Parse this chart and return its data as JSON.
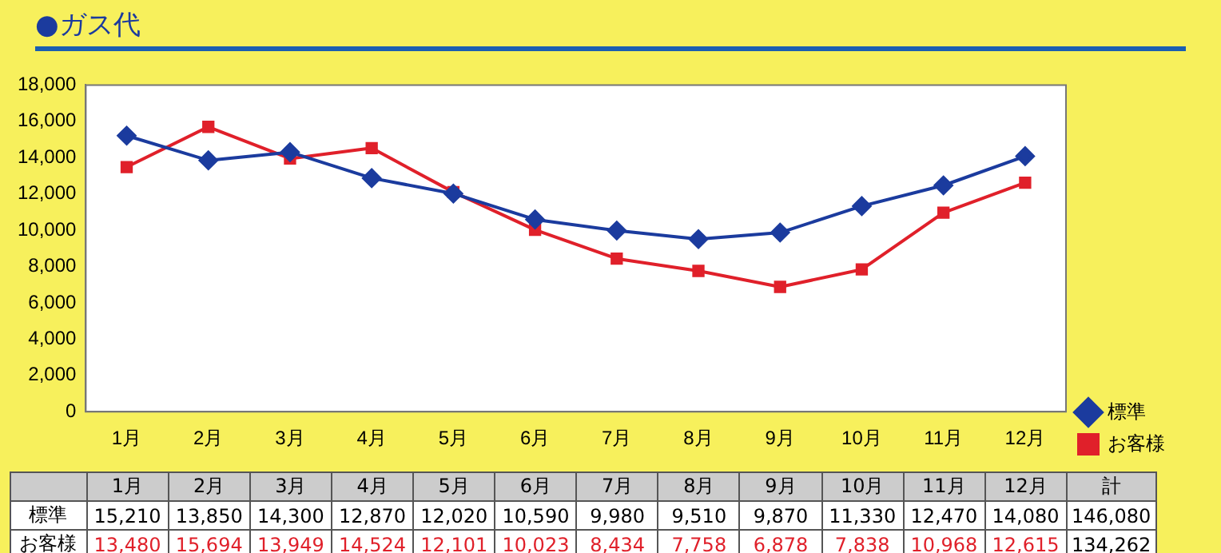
{
  "chart_data": {
    "type": "line",
    "title": "●ガス代",
    "categories": [
      "1月",
      "2月",
      "3月",
      "4月",
      "5月",
      "6月",
      "7月",
      "8月",
      "9月",
      "10月",
      "11月",
      "12月"
    ],
    "series": [
      {
        "name": "標準",
        "color": "#1b3b9e",
        "marker": "diamond",
        "values": [
          15210,
          13850,
          14300,
          12870,
          12020,
          10590,
          9980,
          9510,
          9870,
          11330,
          12470,
          14080
        ],
        "value_labels": [
          "15,210",
          "13,850",
          "14,300",
          "12,870",
          "12,020",
          "10,590",
          "9,980",
          "9,510",
          "9,870",
          "11,330",
          "12,470",
          "14,080"
        ]
      },
      {
        "name": "お客様",
        "color": "#e0202a",
        "marker": "square",
        "values": [
          13480,
          15694,
          13949,
          14524,
          12101,
          10023,
          8434,
          7758,
          6878,
          7838,
          10968,
          12615
        ],
        "value_labels": [
          "13,480",
          "15,694",
          "13,949",
          "14,524",
          "12,101",
          "10,023",
          "8,434",
          "7,758",
          "6,878",
          "7,838",
          "10,968",
          "12,615"
        ]
      }
    ],
    "ylim": [
      0,
      18000
    ],
    "yticks": [
      {
        "value": 0,
        "label": "0"
      },
      {
        "value": 2000,
        "label": "2,000"
      },
      {
        "value": 4000,
        "label": "4,000"
      },
      {
        "value": 6000,
        "label": "6,000"
      },
      {
        "value": 8000,
        "label": "8,000"
      },
      {
        "value": 10000,
        "label": "10,000"
      },
      {
        "value": 12000,
        "label": "12,000"
      },
      {
        "value": 14000,
        "label": "14,000"
      },
      {
        "value": 16000,
        "label": "16,000"
      },
      {
        "value": 18000,
        "label": "18,000"
      }
    ],
    "grid": false,
    "legend": "bottom right",
    "line_style": "solid",
    "totals": [
      "146,080",
      "134,262"
    ],
    "annotations": [
      "計"
    ]
  }
}
